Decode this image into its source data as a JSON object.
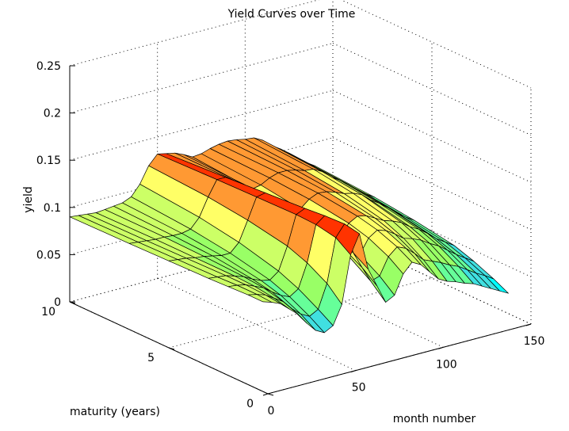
{
  "chart_data": {
    "type": "surface",
    "title": "Yield Curves over Time",
    "xlabel": "month number",
    "ylabel": "maturity (years)",
    "zlabel": "yield",
    "xlim": [
      0,
      150
    ],
    "ylim": [
      0,
      10
    ],
    "zlim": [
      0,
      0.25
    ],
    "x_ticks": [
      "0",
      "50",
      "100",
      "150"
    ],
    "y_ticks": [
      "0",
      "5",
      "10"
    ],
    "z_ticks": [
      "0",
      "0.05",
      "0.1",
      "0.15",
      "0.2",
      "0.25"
    ],
    "grid": true,
    "colormap": [
      "#00ffff",
      "#40e0e0",
      "#66ff99",
      "#99ff66",
      "#ccff66",
      "#ffff66",
      "#ff9933",
      "#ff3300"
    ],
    "maturities": [
      0.25,
      1,
      2,
      3,
      5,
      7,
      10
    ],
    "months": [
      0,
      5,
      10,
      15,
      20,
      25,
      30,
      35,
      40,
      45,
      50,
      55,
      60,
      65,
      70,
      75,
      80,
      85,
      90,
      95,
      100,
      105,
      110,
      115,
      120,
      125,
      130,
      135,
      140
    ],
    "yields": [
      [
        0.095,
        0.095,
        0.094,
        0.093,
        0.092,
        0.091,
        0.09
      ],
      [
        0.092,
        0.093,
        0.093,
        0.092,
        0.091,
        0.09,
        0.089
      ],
      [
        0.088,
        0.09,
        0.091,
        0.091,
        0.09,
        0.089,
        0.088
      ],
      [
        0.08,
        0.084,
        0.087,
        0.088,
        0.088,
        0.088,
        0.087
      ],
      [
        0.072,
        0.078,
        0.083,
        0.085,
        0.087,
        0.088,
        0.088
      ],
      [
        0.06,
        0.068,
        0.076,
        0.08,
        0.085,
        0.087,
        0.089
      ],
      [
        0.05,
        0.06,
        0.07,
        0.076,
        0.083,
        0.087,
        0.09
      ],
      [
        0.045,
        0.055,
        0.066,
        0.074,
        0.083,
        0.089,
        0.094
      ],
      [
        0.05,
        0.06,
        0.072,
        0.081,
        0.092,
        0.099,
        0.105
      ],
      [
        0.07,
        0.085,
        0.097,
        0.105,
        0.113,
        0.118,
        0.122
      ],
      [
        0.12,
        0.131,
        0.135,
        0.136,
        0.135,
        0.134,
        0.132
      ],
      [
        0.14,
        0.143,
        0.142,
        0.14,
        0.137,
        0.134,
        0.13
      ],
      [
        0.1,
        0.11,
        0.118,
        0.123,
        0.127,
        0.128,
        0.128
      ],
      [
        0.08,
        0.092,
        0.104,
        0.111,
        0.118,
        0.122,
        0.124
      ],
      [
        0.06,
        0.075,
        0.089,
        0.098,
        0.108,
        0.114,
        0.119
      ],
      [
        0.065,
        0.078,
        0.091,
        0.1,
        0.11,
        0.116,
        0.12
      ],
      [
        0.085,
        0.096,
        0.106,
        0.112,
        0.118,
        0.121,
        0.123
      ],
      [
        0.095,
        0.104,
        0.112,
        0.117,
        0.122,
        0.124,
        0.125
      ],
      [
        0.09,
        0.1,
        0.109,
        0.115,
        0.121,
        0.124,
        0.126
      ],
      [
        0.08,
        0.092,
        0.103,
        0.11,
        0.118,
        0.122,
        0.125
      ],
      [
        0.07,
        0.083,
        0.096,
        0.105,
        0.114,
        0.119,
        0.123
      ],
      [
        0.065,
        0.079,
        0.093,
        0.102,
        0.112,
        0.118,
        0.122
      ],
      [
        0.062,
        0.075,
        0.089,
        0.098,
        0.108,
        0.113,
        0.117
      ],
      [
        0.058,
        0.07,
        0.083,
        0.091,
        0.1,
        0.105,
        0.109
      ],
      [
        0.055,
        0.066,
        0.078,
        0.086,
        0.094,
        0.099,
        0.103
      ],
      [
        0.05,
        0.06,
        0.071,
        0.079,
        0.087,
        0.092,
        0.096
      ],
      [
        0.045,
        0.054,
        0.064,
        0.071,
        0.079,
        0.084,
        0.088
      ],
      [
        0.04,
        0.049,
        0.058,
        0.065,
        0.072,
        0.077,
        0.081
      ],
      [
        0.035,
        0.043,
        0.052,
        0.059,
        0.066,
        0.071,
        0.075
      ]
    ]
  }
}
